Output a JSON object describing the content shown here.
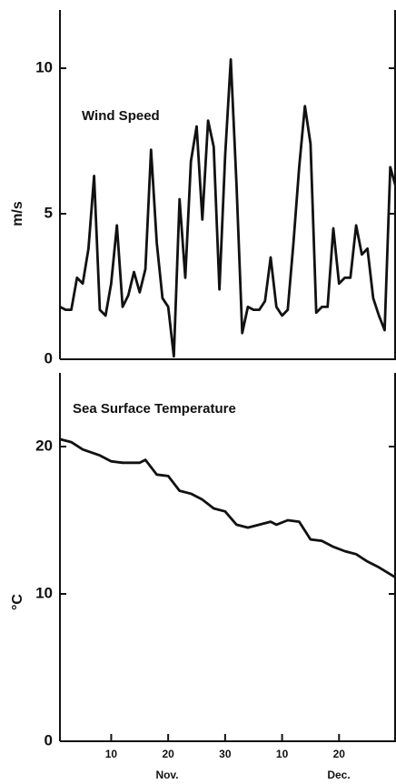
{
  "chart_data": [
    {
      "type": "line",
      "title": "Wind Speed",
      "ylabel": "m/s",
      "x": [
        1,
        2,
        3,
        4,
        5,
        6,
        7,
        8,
        9,
        10,
        11,
        12,
        13,
        14,
        15,
        16,
        17,
        18,
        19,
        20,
        21,
        22,
        23,
        24,
        25,
        26,
        27,
        28,
        29,
        30,
        31,
        32,
        33,
        34,
        35,
        36,
        37,
        38,
        39,
        40,
        41,
        42,
        43,
        44,
        45,
        46,
        47,
        48,
        49,
        50,
        51,
        52,
        53,
        54,
        55,
        56,
        57,
        58,
        59,
        60
      ],
      "values": [
        1.8,
        1.7,
        1.7,
        2.8,
        2.6,
        3.8,
        6.3,
        1.7,
        1.5,
        2.6,
        4.6,
        1.8,
        2.2,
        3.0,
        2.3,
        3.1,
        7.2,
        4.0,
        2.1,
        1.8,
        0.1,
        5.5,
        2.8,
        6.8,
        8.0,
        4.8,
        8.2,
        7.3,
        2.4,
        7.0,
        10.3,
        6.0,
        0.9,
        1.8,
        1.7,
        1.7,
        2.0,
        3.5,
        1.8,
        1.5,
        1.7,
        4.0,
        6.6,
        8.7,
        7.4,
        1.6,
        1.8,
        1.8,
        4.5,
        2.6,
        2.8,
        2.8,
        4.6,
        3.6,
        3.8,
        2.1,
        1.5,
        1.0,
        6.6,
        5.9
      ],
      "color": "#111111",
      "xlim": [
        1,
        60
      ],
      "ylim": [
        0,
        12
      ],
      "yticks": [
        0,
        5,
        10
      ]
    },
    {
      "type": "line",
      "title": "Sea Surface Temperature",
      "ylabel": "°C",
      "x": [
        1,
        3,
        5,
        8,
        10,
        12,
        15,
        16,
        18,
        20,
        22,
        24,
        26,
        28,
        30,
        32,
        34,
        36,
        38,
        39,
        41,
        43,
        45,
        47,
        49,
        51,
        53,
        55,
        57,
        60
      ],
      "values": [
        20.5,
        20.3,
        19.8,
        19.4,
        19.0,
        18.9,
        18.9,
        19.1,
        18.1,
        18.0,
        17.0,
        16.8,
        16.4,
        15.8,
        15.6,
        14.7,
        14.5,
        14.7,
        14.9,
        14.7,
        15.0,
        14.9,
        13.7,
        13.6,
        13.2,
        12.9,
        12.7,
        12.2,
        11.8,
        11.1
      ],
      "color": "#111111",
      "xlim": [
        1,
        60
      ],
      "ylim": [
        0,
        25
      ],
      "yticks": [
        0,
        10,
        20
      ],
      "xticks": [
        10,
        20,
        30,
        {
          "value": 40,
          "label": "10"
        },
        {
          "value": 50,
          "label": "20"
        }
      ],
      "month_labels": [
        "Nov.",
        "Dec."
      ]
    }
  ]
}
